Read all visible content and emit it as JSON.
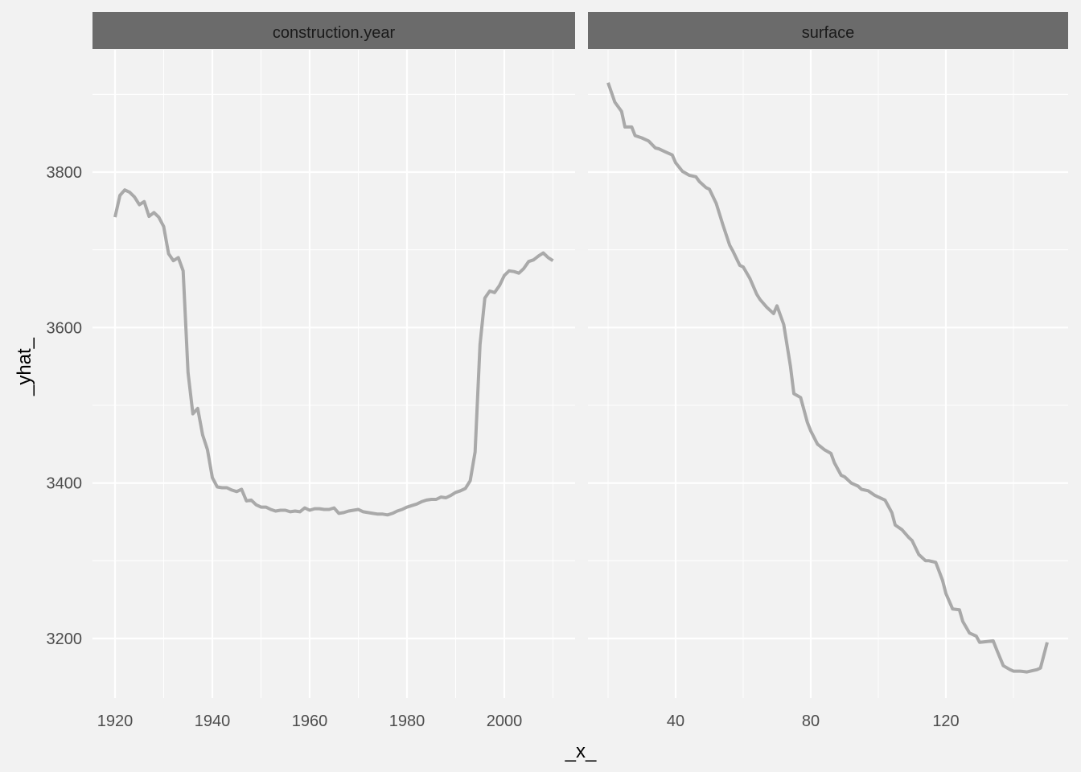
{
  "chart_data": {
    "type": "line",
    "xlabel": "_x_",
    "ylabel": "_yhat_",
    "y_ticks": [
      3200,
      3400,
      3600,
      3800
    ],
    "grid": true,
    "colors": {
      "background": "#f2f2f2",
      "strip": "#6b6b6b",
      "line": "#a9a9a9",
      "grid": "#ffffff"
    },
    "panels": [
      {
        "strip_label": "construction.year",
        "x_ticks": [
          1920,
          1940,
          1960,
          1980,
          2000
        ],
        "x": [
          1920,
          1921,
          1922,
          1923,
          1924,
          1925,
          1926,
          1927,
          1928,
          1929,
          1930,
          1931,
          1932,
          1933,
          1934,
          1935,
          1936,
          1937,
          1938,
          1939,
          1940,
          1941,
          1942,
          1943,
          1944,
          1945,
          1946,
          1947,
          1948,
          1949,
          1950,
          1951,
          1952,
          1953,
          1954,
          1955,
          1956,
          1957,
          1958,
          1959,
          1960,
          1961,
          1962,
          1963,
          1964,
          1965,
          1966,
          1967,
          1968,
          1969,
          1970,
          1971,
          1972,
          1973,
          1974,
          1975,
          1976,
          1977,
          1978,
          1979,
          1980,
          1981,
          1982,
          1983,
          1984,
          1985,
          1986,
          1987,
          1988,
          1989,
          1990,
          1991,
          1992,
          1993,
          1994,
          1995,
          1996,
          1997,
          1998,
          1999,
          2000,
          2001,
          2002,
          2003,
          2004,
          2005,
          2006,
          2007,
          2008,
          2009,
          2010
        ],
        "y": [
          3742,
          3770,
          3777,
          3774,
          3768,
          3758,
          3762,
          3743,
          3748,
          3742,
          3730,
          3695,
          3686,
          3690,
          3673,
          3542,
          3489,
          3496,
          3462,
          3443,
          3407,
          3395,
          3394,
          3394,
          3391,
          3389,
          3392,
          3377,
          3378,
          3372,
          3369,
          3369,
          3366,
          3364,
          3365,
          3365,
          3363,
          3364,
          3363,
          3368,
          3365,
          3367,
          3367,
          3366,
          3366,
          3368,
          3361,
          3362,
          3364,
          3365,
          3366,
          3363,
          3362,
          3361,
          3360,
          3360,
          3359,
          3361,
          3364,
          3366,
          3369,
          3371,
          3373,
          3376,
          3378,
          3379,
          3379,
          3382,
          3381,
          3384,
          3388,
          3390,
          3393,
          3403,
          3440,
          3578,
          3638,
          3647,
          3645,
          3654,
          3667,
          3673,
          3672,
          3670,
          3676,
          3685,
          3687,
          3692,
          3696,
          3690,
          3686
        ]
      },
      {
        "strip_label": "surface",
        "x_ticks": [
          40,
          80,
          120
        ],
        "x": [
          20,
          22,
          24,
          25,
          27,
          28,
          30,
          32,
          34,
          35,
          37,
          39,
          40,
          42,
          44,
          46,
          47,
          49,
          50,
          52,
          54,
          56,
          57,
          59,
          60,
          62,
          64,
          65,
          67,
          69,
          70,
          72,
          74,
          75,
          77,
          79,
          80,
          82,
          84,
          86,
          87,
          89,
          90,
          92,
          94,
          95,
          97,
          99,
          100,
          102,
          104,
          105,
          107,
          109,
          110,
          112,
          114,
          115,
          117,
          119,
          120,
          122,
          124,
          125,
          127,
          129,
          130,
          132,
          134,
          135,
          137,
          139,
          140,
          142,
          144,
          145,
          147,
          148,
          150
        ],
        "y": [
          3915,
          3890,
          3878,
          3858,
          3858,
          3847,
          3844,
          3840,
          3831,
          3830,
          3826,
          3822,
          3812,
          3801,
          3796,
          3794,
          3788,
          3780,
          3778,
          3760,
          3732,
          3706,
          3698,
          3680,
          3678,
          3663,
          3643,
          3636,
          3626,
          3618,
          3628,
          3604,
          3550,
          3515,
          3510,
          3478,
          3467,
          3450,
          3443,
          3438,
          3426,
          3410,
          3408,
          3400,
          3396,
          3392,
          3390,
          3384,
          3382,
          3378,
          3362,
          3346,
          3340,
          3330,
          3326,
          3308,
          3300,
          3300,
          3298,
          3275,
          3258,
          3238,
          3237,
          3222,
          3207,
          3203,
          3195,
          3196,
          3197,
          3186,
          3165,
          3160,
          3158,
          3158,
          3157,
          3158,
          3160,
          3162,
          3195
        ]
      }
    ]
  }
}
